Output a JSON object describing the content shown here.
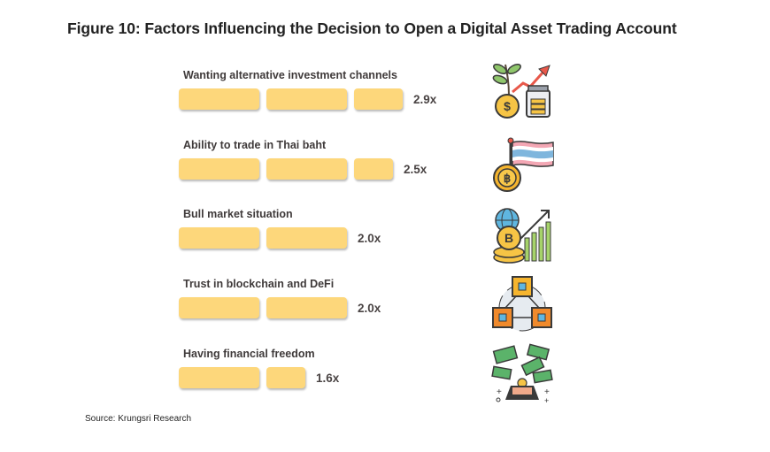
{
  "title": "Figure 10: Factors Influencing the Decision to Open a Digital Asset Trading Account",
  "source": "Source: Krungsri Research",
  "colors": {
    "bar": "#fdd77b",
    "text": "#3f3a3a"
  },
  "chart_data": {
    "type": "bar",
    "orientation": "horizontal",
    "title": "Figure 10: Factors Influencing the Decision to Open a Digital Asset Trading Account",
    "unit_per_block": 1.0,
    "categories": [
      "Wanting alternative investment channels",
      "Ability to trade in Thai baht",
      "Bull market situation",
      "Trust in blockchain and DeFi",
      "Having financial freedom"
    ],
    "values": [
      2.9,
      2.5,
      2.0,
      2.0,
      1.6
    ],
    "value_labels": [
      "2.9x",
      "2.5x",
      "2.0x",
      "2.0x",
      "1.6x"
    ],
    "icons": [
      "investment-growth-icon",
      "thai-flag-baht-coin-icon",
      "bitcoin-bull-market-icon",
      "blockchain-cubes-icon",
      "money-freedom-icon"
    ]
  }
}
